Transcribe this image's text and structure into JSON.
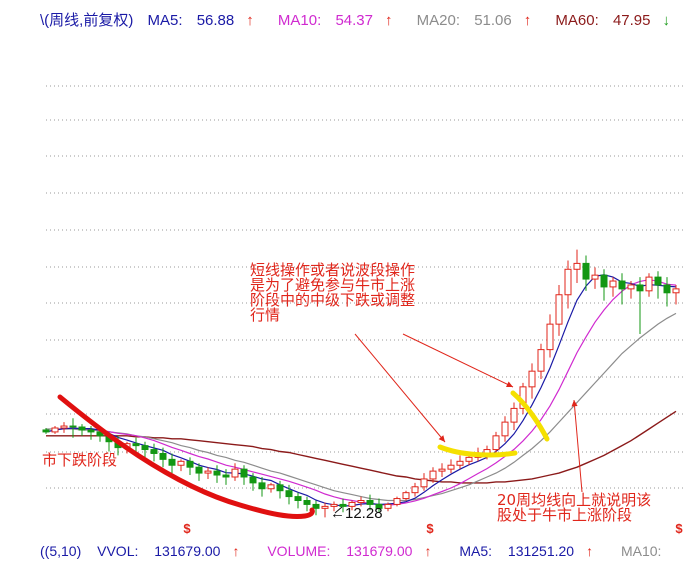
{
  "header": {
    "period_label": "\\(周线,前复权)",
    "ma5": {
      "label": "MA5:",
      "value": "56.88",
      "arrow": "↑",
      "color": "#1a1aa6",
      "arrow_color": "#e0261b"
    },
    "ma10": {
      "label": "MA10:",
      "value": "54.37",
      "arrow": "↑",
      "color": "#d02ad0",
      "arrow_color": "#e0261b"
    },
    "ma20": {
      "label": "MA20:",
      "value": "51.06",
      "arrow": "↑",
      "color": "#8c8c8c",
      "arrow_color": "#e0261b"
    },
    "ma60": {
      "label": "MA60:",
      "value": "47.95",
      "arrow": "↓",
      "color": "#8b1a1a",
      "arrow_color": "#1a9a1a"
    }
  },
  "footer": {
    "indicator": "((5,10)",
    "vvol": {
      "label": "VVOL:",
      "value": "131679.00",
      "arrow": "↑",
      "color": "#1a1aa6"
    },
    "volume": {
      "label": "VOLUME:",
      "value": "131679.00",
      "arrow": "↑",
      "color": "#d02ad0"
    },
    "ma5": {
      "label": "MA5:",
      "value": "131251.20",
      "arrow": "↑",
      "color": "#1a1aa6"
    },
    "ma10": {
      "label": "MA10:",
      "value": "",
      "arrow": "",
      "color": "#8c8c8c"
    }
  },
  "annotations": {
    "short_term": "短线操作或者说波段操作\n是为了避免参与牛市上涨\n阶段中的中级下跌或调整\n行情",
    "bear_phase": "市下跌阶段",
    "ma20_up": "20周均线向上就说明该\n股处于牛市上涨阶段",
    "low_price": "←12.28",
    "marker_glyph": "$"
  },
  "chart_data": {
    "type": "candlestick",
    "title": "",
    "xlabel": "",
    "ylabel": "",
    "ylim": [
      11.5,
      61
    ],
    "grid": "horizontal dotted",
    "low_label": 12.28,
    "candles": [
      [
        21.2,
        21.4,
        21.0,
        20.8
      ],
      [
        21.0,
        21.6,
        21.4,
        20.8
      ],
      [
        21.4,
        22.0,
        21.6,
        20.9
      ],
      [
        21.6,
        22.4,
        21.5,
        20.4
      ],
      [
        21.5,
        21.8,
        21.2,
        20.6
      ],
      [
        21.2,
        21.6,
        21.0,
        20.2
      ],
      [
        21.0,
        21.3,
        20.6,
        20.0
      ],
      [
        20.6,
        21.0,
        20.0,
        19.0
      ],
      [
        20.0,
        20.6,
        19.4,
        18.6
      ],
      [
        19.4,
        20.0,
        19.8,
        18.8
      ],
      [
        19.8,
        20.4,
        19.6,
        19.0
      ],
      [
        19.6,
        20.0,
        19.2,
        18.4
      ],
      [
        19.2,
        19.8,
        18.8,
        18.0
      ],
      [
        18.8,
        19.4,
        18.2,
        17.4
      ],
      [
        18.2,
        18.8,
        17.6,
        16.8
      ],
      [
        17.6,
        18.2,
        18.0,
        17.0
      ],
      [
        18.0,
        18.4,
        17.4,
        16.6
      ],
      [
        17.4,
        17.8,
        16.8,
        16.0
      ],
      [
        16.8,
        17.4,
        17.0,
        16.2
      ],
      [
        17.0,
        17.6,
        16.6,
        15.8
      ],
      [
        16.6,
        17.2,
        16.4,
        15.6
      ],
      [
        16.4,
        17.8,
        17.2,
        16.0
      ],
      [
        17.2,
        17.6,
        16.4,
        15.6
      ],
      [
        16.4,
        16.8,
        15.8,
        15.0
      ],
      [
        15.8,
        16.4,
        15.2,
        14.4
      ],
      [
        15.2,
        15.8,
        15.6,
        14.8
      ],
      [
        15.6,
        16.0,
        15.0,
        14.2
      ],
      [
        15.0,
        15.6,
        14.4,
        13.6
      ],
      [
        14.4,
        14.8,
        14.0,
        13.2
      ],
      [
        14.0,
        14.4,
        13.6,
        12.9
      ],
      [
        13.6,
        14.0,
        13.2,
        12.5
      ],
      [
        13.2,
        13.8,
        13.4,
        12.28
      ],
      [
        13.4,
        13.9,
        13.6,
        12.9
      ],
      [
        13.6,
        14.2,
        13.4,
        12.8
      ],
      [
        13.4,
        14.0,
        13.8,
        13.0
      ],
      [
        13.8,
        14.4,
        14.0,
        13.4
      ],
      [
        14.0,
        14.6,
        13.6,
        13.0
      ],
      [
        13.6,
        14.2,
        13.2,
        12.8
      ],
      [
        13.2,
        13.8,
        13.6,
        12.9
      ],
      [
        13.6,
        14.4,
        14.2,
        13.4
      ],
      [
        14.2,
        15.0,
        14.8,
        14.0
      ],
      [
        14.8,
        15.8,
        15.4,
        14.4
      ],
      [
        15.4,
        16.8,
        16.2,
        15.0
      ],
      [
        16.2,
        17.4,
        17.0,
        15.8
      ],
      [
        17.0,
        17.8,
        17.2,
        16.4
      ],
      [
        17.2,
        18.2,
        17.6,
        16.8
      ],
      [
        17.6,
        18.6,
        18.0,
        17.2
      ],
      [
        18.0,
        18.8,
        18.4,
        17.6
      ],
      [
        18.4,
        19.4,
        18.8,
        18.0
      ],
      [
        18.8,
        19.6,
        19.2,
        18.2
      ],
      [
        19.2,
        21.0,
        20.6,
        18.8
      ],
      [
        20.6,
        22.6,
        22.0,
        20.0
      ],
      [
        22.0,
        24.0,
        23.4,
        21.2
      ],
      [
        23.4,
        26.0,
        25.6,
        22.8
      ],
      [
        25.6,
        28.0,
        27.2,
        24.4
      ],
      [
        27.2,
        30.0,
        29.4,
        26.4
      ],
      [
        29.4,
        33.0,
        32.0,
        28.6
      ],
      [
        32.0,
        36.0,
        35.0,
        30.8
      ],
      [
        35.0,
        38.5,
        37.6,
        33.6
      ],
      [
        37.6,
        39.6,
        38.2,
        36.2
      ],
      [
        38.2,
        39.0,
        36.6,
        35.4
      ],
      [
        36.6,
        37.8,
        37.0,
        35.6
      ],
      [
        37.0,
        37.6,
        35.8,
        34.4
      ],
      [
        35.8,
        36.8,
        36.4,
        34.8
      ],
      [
        36.4,
        37.2,
        35.6,
        34.0
      ],
      [
        35.6,
        36.4,
        36.0,
        34.6
      ],
      [
        36.0,
        36.8,
        35.4,
        31.0
      ],
      [
        35.4,
        37.2,
        36.8,
        34.8
      ],
      [
        36.8,
        37.4,
        36.0,
        34.6
      ],
      [
        36.0,
        36.8,
        35.2,
        33.8
      ],
      [
        35.2,
        36.0,
        35.6,
        34.0
      ]
    ],
    "ma20": [
      21.3,
      21.3,
      21.3,
      21.3,
      21.2,
      21.2,
      21.1,
      21.0,
      20.9,
      20.8,
      20.6,
      20.5,
      20.3,
      20.1,
      19.9,
      19.6,
      19.4,
      19.1,
      18.9,
      18.6,
      18.4,
      18.1,
      17.9,
      17.6,
      17.3,
      17.0,
      16.8,
      16.5,
      16.2,
      15.9,
      15.6,
      15.3,
      15.0,
      14.8,
      14.6,
      14.4,
      14.2,
      14.1,
      14.0,
      14.0,
      14.0,
      14.1,
      14.3,
      14.5,
      14.7,
      15.0,
      15.3,
      15.6,
      16.0,
      16.4,
      16.8,
      17.3,
      17.9,
      18.6,
      19.3,
      20.1,
      21.0,
      22.0,
      23.0,
      24.0,
      25.0,
      26.0,
      27.0,
      28.0,
      29.0,
      29.8,
      30.6,
      31.3,
      32.0,
      32.6,
      33.1
    ],
    "ma60": [
      20.6,
      20.6,
      20.6,
      20.6,
      20.6,
      20.6,
      20.6,
      20.6,
      20.6,
      20.6,
      20.5,
      20.5,
      20.4,
      20.4,
      20.3,
      20.3,
      20.2,
      20.1,
      20.0,
      19.9,
      19.8,
      19.7,
      19.6,
      19.5,
      19.3,
      19.2,
      19.0,
      18.9,
      18.7,
      18.5,
      18.3,
      18.1,
      17.9,
      17.7,
      17.5,
      17.3,
      17.1,
      16.9,
      16.7,
      16.5,
      16.4,
      16.2,
      16.1,
      16.0,
      15.9,
      15.9,
      15.8,
      15.8,
      15.8,
      15.8,
      15.9,
      15.9,
      16.0,
      16.1,
      16.2,
      16.4,
      16.6,
      16.8,
      17.1,
      17.4,
      17.8,
      18.2,
      18.6,
      19.1,
      19.6,
      20.1,
      20.7,
      21.3,
      21.9,
      22.5,
      23.1
    ],
    "series": [
      {
        "name": "MA5",
        "values": "computed"
      },
      {
        "name": "MA10",
        "values": "computed"
      },
      {
        "name": "MA20"
      },
      {
        "name": "MA60"
      }
    ],
    "colors": {
      "up": "#e0261b",
      "down": "#139713",
      "ma5": "#1a1aa6",
      "ma10": "#d02ad0",
      "ma20": "#8c8c8c",
      "ma60": "#8b1a1a",
      "grid": "#9a9a9a",
      "annotation": "#e0261b",
      "highlight": "#f5e000"
    }
  }
}
